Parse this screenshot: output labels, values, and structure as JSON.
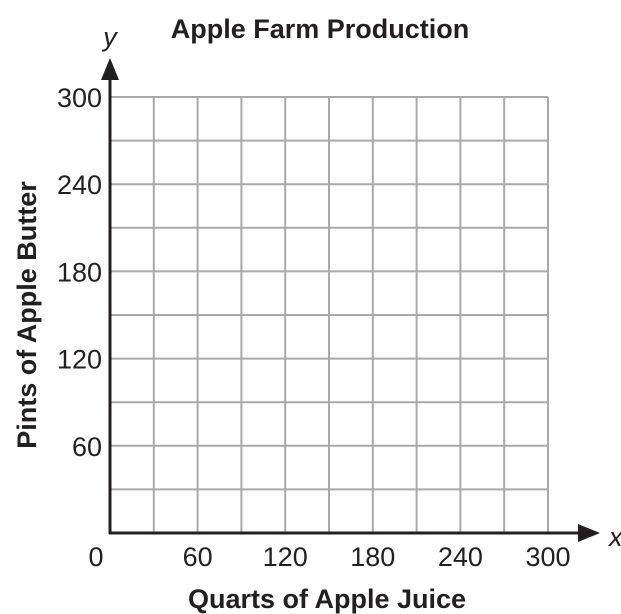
{
  "chart_data": {
    "type": "scatter",
    "title": "Apple Farm Production",
    "xlabel": "Quarts of Apple Juice",
    "ylabel": "Pints of Apple Butter",
    "x_axis_var": "x",
    "y_axis_var": "y",
    "origin_label": "0",
    "xlim": [
      0,
      300
    ],
    "ylim": [
      0,
      300
    ],
    "x_grid_step": 30,
    "y_grid_step": 30,
    "x_ticks": [
      60,
      120,
      180,
      240,
      300
    ],
    "x_tick_labels": [
      "60",
      "120",
      "180",
      "240",
      "300"
    ],
    "y_ticks": [
      60,
      120,
      180,
      240,
      300
    ],
    "y_tick_labels": [
      "60",
      "120",
      "180",
      "240",
      "300"
    ],
    "grid": true,
    "series": [],
    "colors": {
      "axis": "#231f20",
      "grid": "#a7a9ac",
      "text": "#231f20"
    }
  }
}
